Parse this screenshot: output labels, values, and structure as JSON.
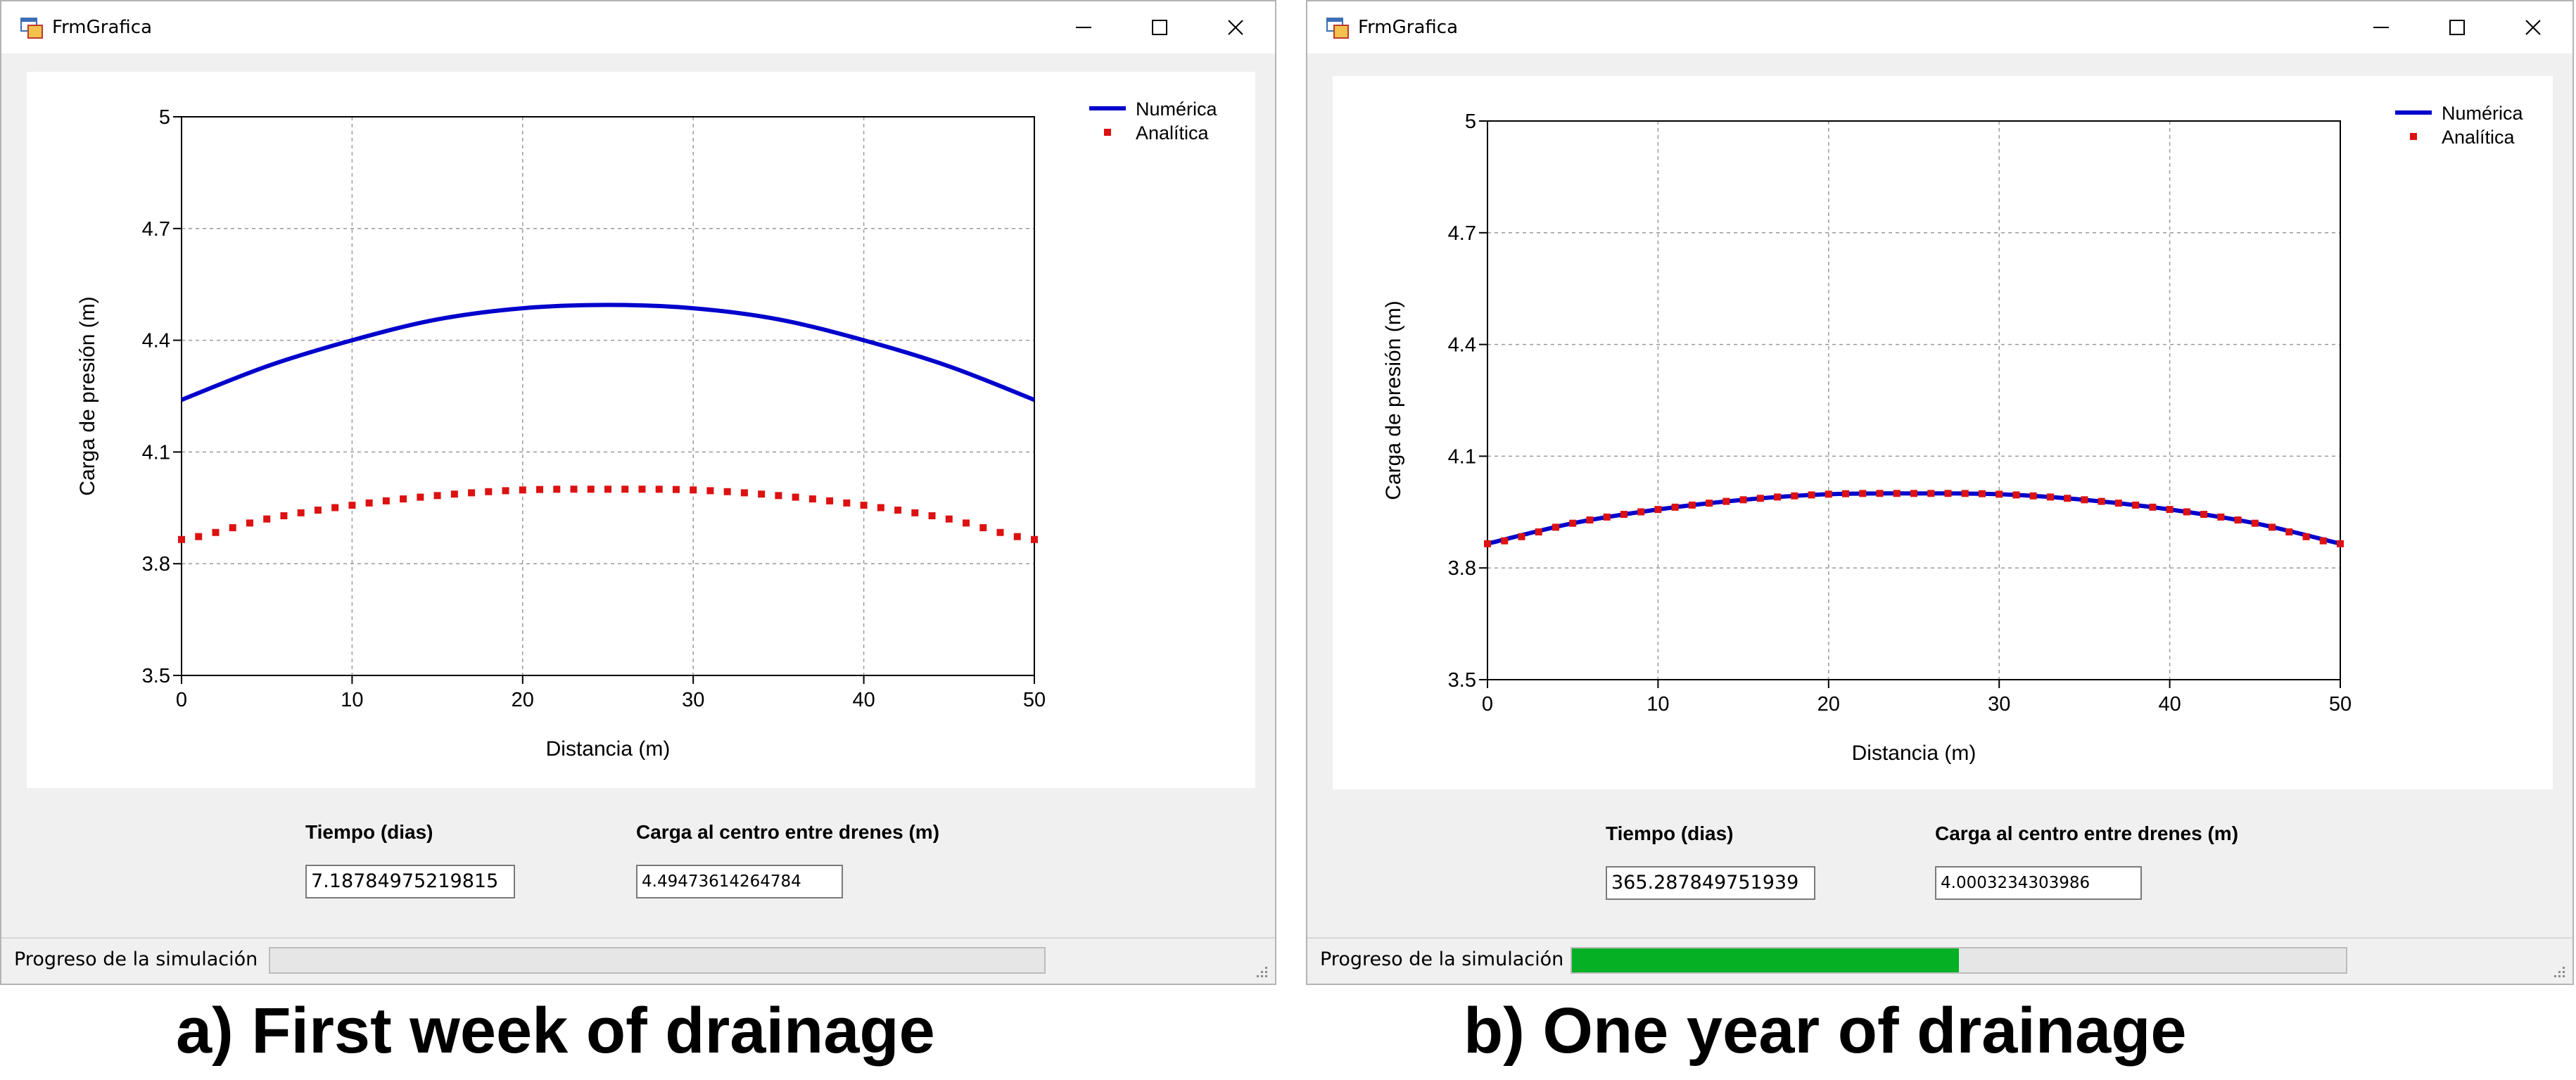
{
  "windows": [
    {
      "title": "FrmGrafica",
      "tiempo_label": "Tiempo (dias)",
      "tiempo_value": "7.18784975219815",
      "carga_label": "Carga al centro entre drenes (m)",
      "carga_value": "4.49473614264784",
      "status_label": "Progreso de la simulación",
      "progress": 0.0,
      "caption": "a) First week of drainage"
    },
    {
      "title": "FrmGrafica",
      "tiempo_label": "Tiempo (dias)",
      "tiempo_value": "365.287849751939",
      "carga_label": "Carga al centro entre drenes (m)",
      "carga_value": "4.0003234303986",
      "status_label": "Progreso de la simulación",
      "progress": 0.5,
      "caption": "b) One year of drainage"
    }
  ],
  "chart_data": [
    {
      "type": "line",
      "xlabel": "Distancia (m)",
      "ylabel": "Carga de presión (m)",
      "xlim": [
        0,
        50
      ],
      "ylim": [
        3.5,
        5
      ],
      "xticks": [
        "0",
        "10",
        "20",
        "30",
        "40",
        "50"
      ],
      "yticks": [
        "3.5",
        "3.8",
        "4.1",
        "4.4",
        "4.7",
        "5"
      ],
      "grid": true,
      "legend_position": "top-right",
      "series": [
        {
          "name": "Numérica",
          "style": "line",
          "color": "#0000cc",
          "x": [
            0,
            5,
            10,
            15,
            20,
            25,
            30,
            35,
            40,
            45,
            50
          ],
          "y": [
            4.24,
            4.33,
            4.4,
            4.456,
            4.486,
            4.495,
            4.486,
            4.456,
            4.4,
            4.33,
            4.24
          ]
        },
        {
          "name": "Analítica",
          "style": "markers",
          "color": "#dd1111",
          "x": [
            0,
            5,
            10,
            15,
            20,
            25,
            30,
            35,
            40,
            45,
            50
          ],
          "y": [
            3.865,
            3.92,
            3.957,
            3.983,
            3.998,
            4.0,
            3.998,
            3.983,
            3.957,
            3.92,
            3.865
          ]
        }
      ]
    },
    {
      "type": "line",
      "xlabel": "Distancia (m)",
      "ylabel": "Carga de presión (m)",
      "xlim": [
        0,
        50
      ],
      "ylim": [
        3.5,
        5
      ],
      "xticks": [
        "0",
        "10",
        "20",
        "30",
        "40",
        "50"
      ],
      "yticks": [
        "3.5",
        "3.8",
        "4.1",
        "4.4",
        "4.7",
        "5"
      ],
      "grid": true,
      "legend_position": "top-right",
      "series": [
        {
          "name": "Numérica",
          "style": "line",
          "color": "#0000cc",
          "x": [
            0,
            5,
            10,
            15,
            20,
            25,
            30,
            35,
            40,
            45,
            50
          ],
          "y": [
            3.865,
            3.92,
            3.957,
            3.983,
            3.998,
            4.0,
            3.998,
            3.983,
            3.957,
            3.92,
            3.865
          ]
        },
        {
          "name": "Analítica",
          "style": "markers",
          "color": "#dd1111",
          "x": [
            0,
            5,
            10,
            15,
            20,
            25,
            30,
            35,
            40,
            45,
            50
          ],
          "y": [
            3.865,
            3.92,
            3.957,
            3.983,
            3.998,
            4.0,
            3.998,
            3.983,
            3.957,
            3.92,
            3.865
          ]
        }
      ]
    }
  ]
}
